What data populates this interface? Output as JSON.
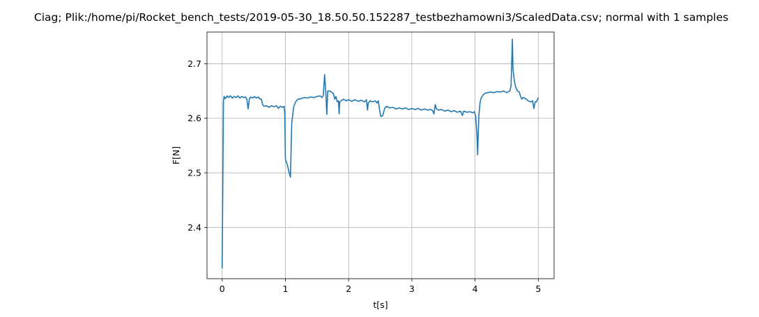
{
  "chart_data": {
    "type": "line",
    "title": "Ciag; Plik:/home/pi/Rocket_bench_tests/2019-05-30_18.50.50.152287_testbezhamowni3/ScaledData.csv; normal with 1 samples",
    "xlabel": "t[s]",
    "ylabel": "F[N]",
    "xlim": [
      -0.24,
      5.25
    ],
    "ylim": [
      2.306,
      2.758
    ],
    "grid": true,
    "x_ticks": [
      0,
      1,
      2,
      3,
      4,
      5
    ],
    "y_ticks": [
      2.4,
      2.5,
      2.6,
      2.7
    ],
    "x_tick_labels": [
      "0",
      "1",
      "2",
      "3",
      "4",
      "5"
    ],
    "y_tick_labels": [
      "2.4",
      "2.5",
      "2.6",
      "2.7"
    ],
    "series": [
      {
        "name": "F",
        "color": "#1f77b4",
        "points": [
          [
            0.0,
            2.325
          ],
          [
            0.02,
            2.63
          ],
          [
            0.03,
            2.64
          ],
          [
            0.05,
            2.636
          ],
          [
            0.08,
            2.641
          ],
          [
            0.1,
            2.638
          ],
          [
            0.13,
            2.641
          ],
          [
            0.16,
            2.637
          ],
          [
            0.19,
            2.64
          ],
          [
            0.22,
            2.638
          ],
          [
            0.25,
            2.641
          ],
          [
            0.28,
            2.637
          ],
          [
            0.31,
            2.64
          ],
          [
            0.34,
            2.638
          ],
          [
            0.37,
            2.639
          ],
          [
            0.39,
            2.635
          ],
          [
            0.41,
            2.617
          ],
          [
            0.43,
            2.636
          ],
          [
            0.45,
            2.639
          ],
          [
            0.48,
            2.637
          ],
          [
            0.51,
            2.64
          ],
          [
            0.54,
            2.637
          ],
          [
            0.57,
            2.639
          ],
          [
            0.6,
            2.635
          ],
          [
            0.62,
            2.635
          ],
          [
            0.64,
            2.625
          ],
          [
            0.66,
            2.622
          ],
          [
            0.7,
            2.623
          ],
          [
            0.74,
            2.62
          ],
          [
            0.78,
            2.623
          ],
          [
            0.82,
            2.621
          ],
          [
            0.86,
            2.623
          ],
          [
            0.89,
            2.618
          ],
          [
            0.92,
            2.622
          ],
          [
            0.96,
            2.62
          ],
          [
            0.98,
            2.622
          ],
          [
            0.99,
            2.61
          ],
          [
            1.0,
            2.525
          ],
          [
            1.03,
            2.515
          ],
          [
            1.06,
            2.5
          ],
          [
            1.08,
            2.492
          ],
          [
            1.1,
            2.59
          ],
          [
            1.13,
            2.62
          ],
          [
            1.16,
            2.63
          ],
          [
            1.2,
            2.635
          ],
          [
            1.25,
            2.636
          ],
          [
            1.3,
            2.638
          ],
          [
            1.35,
            2.637
          ],
          [
            1.4,
            2.639
          ],
          [
            1.45,
            2.638
          ],
          [
            1.5,
            2.64
          ],
          [
            1.55,
            2.641
          ],
          [
            1.58,
            2.638
          ],
          [
            1.6,
            2.642
          ],
          [
            1.62,
            2.68
          ],
          [
            1.64,
            2.645
          ],
          [
            1.655,
            2.607
          ],
          [
            1.67,
            2.65
          ],
          [
            1.7,
            2.65
          ],
          [
            1.73,
            2.648
          ],
          [
            1.76,
            2.645
          ],
          [
            1.78,
            2.635
          ],
          [
            1.8,
            2.64
          ],
          [
            1.82,
            2.63
          ],
          [
            1.84,
            2.632
          ],
          [
            1.85,
            2.608
          ],
          [
            1.86,
            2.63
          ],
          [
            1.88,
            2.632
          ],
          [
            1.92,
            2.635
          ],
          [
            1.96,
            2.632
          ],
          [
            2.0,
            2.634
          ],
          [
            2.05,
            2.631
          ],
          [
            2.1,
            2.634
          ],
          [
            2.15,
            2.631
          ],
          [
            2.2,
            2.633
          ],
          [
            2.25,
            2.63
          ],
          [
            2.28,
            2.634
          ],
          [
            2.3,
            2.615
          ],
          [
            2.31,
            2.628
          ],
          [
            2.34,
            2.632
          ],
          [
            2.38,
            2.63
          ],
          [
            2.42,
            2.632
          ],
          [
            2.45,
            2.628
          ],
          [
            2.47,
            2.632
          ],
          [
            2.49,
            2.615
          ],
          [
            2.51,
            2.603
          ],
          [
            2.54,
            2.605
          ],
          [
            2.57,
            2.618
          ],
          [
            2.6,
            2.622
          ],
          [
            2.65,
            2.619
          ],
          [
            2.7,
            2.62
          ],
          [
            2.75,
            2.617
          ],
          [
            2.8,
            2.619
          ],
          [
            2.85,
            2.617
          ],
          [
            2.9,
            2.619
          ],
          [
            2.95,
            2.616
          ],
          [
            3.0,
            2.618
          ],
          [
            3.05,
            2.616
          ],
          [
            3.1,
            2.618
          ],
          [
            3.15,
            2.615
          ],
          [
            3.2,
            2.617
          ],
          [
            3.25,
            2.615
          ],
          [
            3.3,
            2.616
          ],
          [
            3.33,
            2.614
          ],
          [
            3.35,
            2.608
          ],
          [
            3.37,
            2.625
          ],
          [
            3.39,
            2.617
          ],
          [
            3.42,
            2.615
          ],
          [
            3.47,
            2.616
          ],
          [
            3.52,
            2.613
          ],
          [
            3.57,
            2.615
          ],
          [
            3.62,
            2.612
          ],
          [
            3.67,
            2.614
          ],
          [
            3.72,
            2.611
          ],
          [
            3.77,
            2.613
          ],
          [
            3.8,
            2.605
          ],
          [
            3.82,
            2.613
          ],
          [
            3.87,
            2.611
          ],
          [
            3.92,
            2.612
          ],
          [
            3.96,
            2.61
          ],
          [
            3.99,
            2.612
          ],
          [
            4.01,
            2.603
          ],
          [
            4.03,
            2.57
          ],
          [
            4.04,
            2.533
          ],
          [
            4.06,
            2.605
          ],
          [
            4.08,
            2.63
          ],
          [
            4.1,
            2.638
          ],
          [
            4.13,
            2.643
          ],
          [
            4.16,
            2.646
          ],
          [
            4.2,
            2.647
          ],
          [
            4.25,
            2.648
          ],
          [
            4.3,
            2.647
          ],
          [
            4.35,
            2.649
          ],
          [
            4.4,
            2.648
          ],
          [
            4.45,
            2.65
          ],
          [
            4.5,
            2.647
          ],
          [
            4.55,
            2.65
          ],
          [
            4.57,
            2.66
          ],
          [
            4.59,
            2.745
          ],
          [
            4.6,
            2.69
          ],
          [
            4.62,
            2.67
          ],
          [
            4.64,
            2.658
          ],
          [
            4.67,
            2.65
          ],
          [
            4.7,
            2.648
          ],
          [
            4.72,
            2.64
          ],
          [
            4.74,
            2.635
          ],
          [
            4.76,
            2.638
          ],
          [
            4.8,
            2.636
          ],
          [
            4.84,
            2.632
          ],
          [
            4.88,
            2.63
          ],
          [
            4.91,
            2.632
          ],
          [
            4.93,
            2.618
          ],
          [
            4.95,
            2.63
          ],
          [
            4.97,
            2.63
          ],
          [
            5.0,
            2.638
          ]
        ]
      }
    ]
  }
}
